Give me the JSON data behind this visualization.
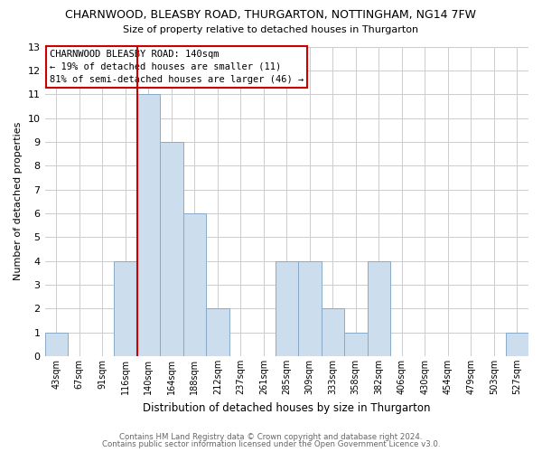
{
  "title1": "CHARNWOOD, BLEASBY ROAD, THURGARTON, NOTTINGHAM, NG14 7FW",
  "title2": "Size of property relative to detached houses in Thurgarton",
  "xlabel": "Distribution of detached houses by size in Thurgarton",
  "ylabel": "Number of detached properties",
  "footer1": "Contains HM Land Registry data © Crown copyright and database right 2024.",
  "footer2": "Contains public sector information licensed under the Open Government Licence v3.0.",
  "categories": [
    "43sqm",
    "67sqm",
    "91sqm",
    "116sqm",
    "140sqm",
    "164sqm",
    "188sqm",
    "212sqm",
    "237sqm",
    "261sqm",
    "285sqm",
    "309sqm",
    "333sqm",
    "358sqm",
    "382sqm",
    "406sqm",
    "430sqm",
    "454sqm",
    "479sqm",
    "503sqm",
    "527sqm"
  ],
  "values": [
    1,
    0,
    0,
    4,
    11,
    9,
    6,
    2,
    0,
    0,
    4,
    4,
    2,
    1,
    4,
    0,
    0,
    0,
    0,
    0,
    1
  ],
  "bar_color": "#ccdded",
  "bar_edge_color": "#88aac8",
  "red_line_index": 4,
  "annotation_title": "CHARNWOOD BLEASBY ROAD: 140sqm",
  "annotation_line1": "← 19% of detached houses are smaller (11)",
  "annotation_line2": "81% of semi-detached houses are larger (46) →",
  "annotation_box_color": "#ffffff",
  "annotation_box_edge": "#cc0000",
  "ylim": [
    0,
    13
  ],
  "yticks": [
    0,
    1,
    2,
    3,
    4,
    5,
    6,
    7,
    8,
    9,
    10,
    11,
    12,
    13
  ],
  "grid_color": "#cccccc",
  "background_color": "#ffffff",
  "fig_width": 6.0,
  "fig_height": 5.0
}
